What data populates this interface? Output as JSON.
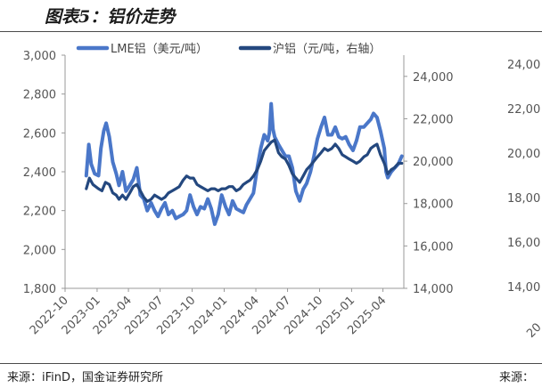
{
  "figure_title": "图表5：铝价走势",
  "source_left": "来源：iFinD，国金证券研究所",
  "source_right": "来源：",
  "right_panel_ticks": [
    "24,00",
    "22,00",
    "20,00",
    "18,00",
    "16,00",
    "14,00",
    "20"
  ],
  "colors": {
    "lme": "#4a77c9",
    "shfe": "#24487f",
    "axis": "#999999"
  },
  "chart_data": {
    "type": "line",
    "title": "图表5：铝价走势",
    "x_tick_labels": [
      "2022-10",
      "2023-01",
      "2023-04",
      "2023-07",
      "2023-10",
      "2024-01",
      "2024-04",
      "2024-07",
      "2024-10",
      "2025-01",
      "2025-04"
    ],
    "x_range": [
      "2022-10-01",
      "2025-05-31"
    ],
    "left_axis": {
      "label": "LME铝（美元/吨）",
      "ylim": [
        1800,
        3000
      ],
      "ticks": [
        "1,800",
        "2,000",
        "2,200",
        "2,400",
        "2,600",
        "2,800",
        "3,000"
      ]
    },
    "right_axis": {
      "label": "沪铝（元/吨，右轴）",
      "ylim": [
        14000,
        25000
      ],
      "ticks": [
        "14,000",
        "16,000",
        "18,000",
        "20,000",
        "22,000",
        "24,000"
      ]
    },
    "legend_position": "top",
    "series": [
      {
        "name": "LME铝（美元/吨）",
        "axis": "left",
        "dates": [
          "2022-12-01",
          "2022-12-08",
          "2022-12-15",
          "2022-12-25",
          "2023-01-05",
          "2023-01-12",
          "2023-01-20",
          "2023-01-27",
          "2023-02-05",
          "2023-02-15",
          "2023-02-25",
          "2023-03-05",
          "2023-03-15",
          "2023-03-25",
          "2023-04-05",
          "2023-04-15",
          "2023-04-25",
          "2023-05-05",
          "2023-05-15",
          "2023-05-25",
          "2023-06-05",
          "2023-06-15",
          "2023-06-25",
          "2023-07-05",
          "2023-07-15",
          "2023-07-25",
          "2023-08-05",
          "2023-08-15",
          "2023-08-25",
          "2023-09-05",
          "2023-09-15",
          "2023-09-25",
          "2023-10-05",
          "2023-10-15",
          "2023-10-25",
          "2023-11-05",
          "2023-11-15",
          "2023-11-25",
          "2023-12-05",
          "2023-12-15",
          "2023-12-25",
          "2024-01-05",
          "2024-01-15",
          "2024-01-25",
          "2024-02-05",
          "2024-02-15",
          "2024-02-25",
          "2024-03-05",
          "2024-03-15",
          "2024-03-25",
          "2024-04-05",
          "2024-04-15",
          "2024-04-25",
          "2024-05-05",
          "2024-05-10",
          "2024-05-15",
          "2024-05-20",
          "2024-05-25",
          "2024-06-05",
          "2024-06-15",
          "2024-06-25",
          "2024-07-05",
          "2024-07-15",
          "2024-07-25",
          "2024-08-05",
          "2024-08-15",
          "2024-08-25",
          "2024-09-05",
          "2024-09-15",
          "2024-09-25",
          "2024-10-05",
          "2024-10-15",
          "2024-10-25",
          "2024-11-05",
          "2024-11-15",
          "2024-11-25",
          "2024-12-05",
          "2024-12-15",
          "2024-12-25",
          "2025-01-05",
          "2025-01-15",
          "2025-01-25",
          "2025-02-05",
          "2025-02-15",
          "2025-02-25",
          "2025-03-05",
          "2025-03-15",
          "2025-03-25",
          "2025-04-05",
          "2025-04-10",
          "2025-04-15",
          "2025-04-25",
          "2025-05-05",
          "2025-05-15",
          "2025-05-25"
        ],
        "values": [
          2380,
          2540,
          2440,
          2390,
          2380,
          2520,
          2610,
          2650,
          2580,
          2450,
          2390,
          2330,
          2400,
          2300,
          2330,
          2360,
          2420,
          2280,
          2260,
          2200,
          2240,
          2200,
          2170,
          2210,
          2240,
          2180,
          2200,
          2160,
          2170,
          2180,
          2200,
          2280,
          2220,
          2180,
          2220,
          2210,
          2260,
          2210,
          2130,
          2180,
          2280,
          2220,
          2180,
          2250,
          2210,
          2200,
          2190,
          2230,
          2260,
          2290,
          2420,
          2520,
          2590,
          2560,
          2600,
          2750,
          2620,
          2580,
          2540,
          2510,
          2480,
          2480,
          2420,
          2300,
          2250,
          2310,
          2340,
          2400,
          2480,
          2570,
          2630,
          2680,
          2590,
          2590,
          2630,
          2580,
          2570,
          2580,
          2540,
          2510,
          2560,
          2630,
          2630,
          2650,
          2670,
          2700,
          2680,
          2610,
          2520,
          2400,
          2370,
          2400,
          2420,
          2440,
          2480
        ]
      },
      {
        "name": "沪铝（元/吨，右轴）",
        "axis": "right",
        "dates": [
          "2022-12-01",
          "2022-12-10",
          "2022-12-20",
          "2023-01-05",
          "2023-01-15",
          "2023-01-25",
          "2023-02-05",
          "2023-02-15",
          "2023-02-25",
          "2023-03-05",
          "2023-03-15",
          "2023-03-25",
          "2023-04-05",
          "2023-04-15",
          "2023-04-25",
          "2023-05-05",
          "2023-05-15",
          "2023-05-25",
          "2023-06-05",
          "2023-06-15",
          "2023-06-25",
          "2023-07-05",
          "2023-07-15",
          "2023-07-25",
          "2023-08-05",
          "2023-08-15",
          "2023-08-25",
          "2023-09-05",
          "2023-09-15",
          "2023-09-25",
          "2023-10-05",
          "2023-10-15",
          "2023-10-25",
          "2023-11-05",
          "2023-11-15",
          "2023-11-25",
          "2023-12-05",
          "2023-12-15",
          "2023-12-25",
          "2024-01-05",
          "2024-01-15",
          "2024-01-25",
          "2024-02-05",
          "2024-02-15",
          "2024-02-25",
          "2024-03-05",
          "2024-03-15",
          "2024-03-25",
          "2024-04-05",
          "2024-04-15",
          "2024-04-25",
          "2024-05-05",
          "2024-05-15",
          "2024-05-25",
          "2024-06-05",
          "2024-06-15",
          "2024-06-25",
          "2024-07-05",
          "2024-07-15",
          "2024-07-25",
          "2024-08-05",
          "2024-08-15",
          "2024-08-25",
          "2024-09-05",
          "2024-09-15",
          "2024-09-25",
          "2024-10-05",
          "2024-10-15",
          "2024-10-25",
          "2024-11-05",
          "2024-11-15",
          "2024-11-25",
          "2024-12-05",
          "2024-12-15",
          "2024-12-25",
          "2025-01-05",
          "2025-01-15",
          "2025-01-25",
          "2025-02-05",
          "2025-02-15",
          "2025-02-25",
          "2025-03-05",
          "2025-03-15",
          "2025-03-25",
          "2025-04-05",
          "2025-04-15",
          "2025-04-25",
          "2025-05-05",
          "2025-05-15",
          "2025-05-25"
        ],
        "values": [
          18700,
          19200,
          18900,
          18700,
          18600,
          19000,
          18900,
          18500,
          18400,
          18200,
          18400,
          18200,
          18500,
          18800,
          18900,
          18600,
          18300,
          18100,
          18200,
          18400,
          18300,
          18200,
          18300,
          18500,
          18600,
          18700,
          18800,
          19100,
          19300,
          19200,
          19200,
          18900,
          18800,
          18700,
          18600,
          18700,
          18700,
          18600,
          18700,
          18700,
          18800,
          18800,
          18600,
          18700,
          18900,
          19000,
          19100,
          19300,
          19600,
          20000,
          20500,
          20700,
          20900,
          21000,
          20400,
          20200,
          20100,
          19800,
          19400,
          19200,
          19000,
          19300,
          19600,
          19800,
          20000,
          20200,
          20400,
          20600,
          20500,
          20600,
          20800,
          20600,
          20300,
          20200,
          20100,
          20000,
          19900,
          20000,
          20200,
          20300,
          20600,
          20700,
          20800,
          20300,
          19900,
          19400,
          19600,
          19700,
          19900,
          19900
        ]
      }
    ]
  }
}
